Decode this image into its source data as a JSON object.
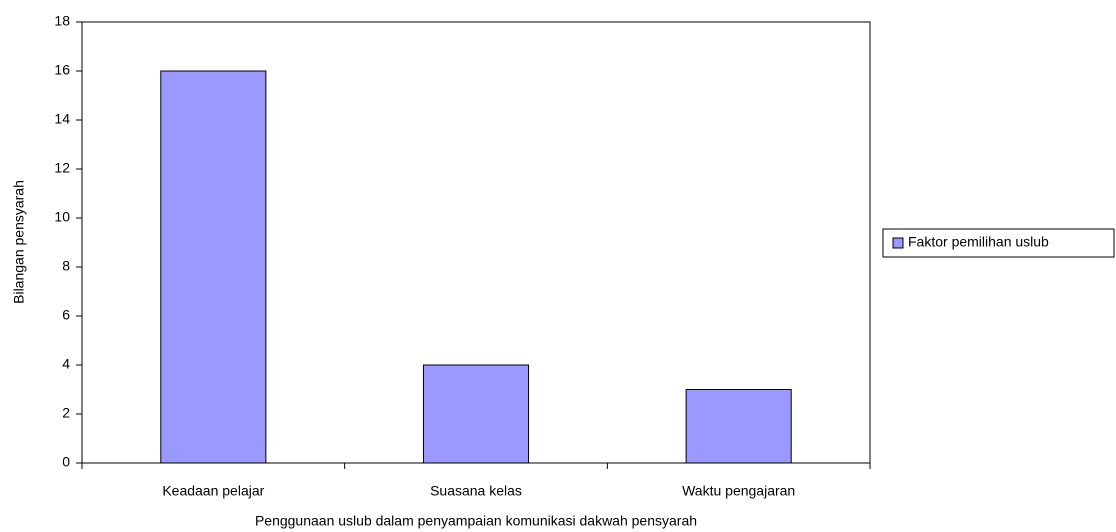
{
  "chart_data": {
    "type": "bar",
    "x_label": "Penggunaan uslub dalam penyampaian komunikasi dakwah pensyarah",
    "y_label": "Bilangan pensyarah",
    "categories": [
      "Keadaan pelajar",
      "Suasana kelas",
      "Waktu pengajaran"
    ],
    "series": [
      {
        "name": "Faktor pemilihan uslub",
        "color": "#9999ff",
        "values": [
          16,
          4,
          3
        ]
      }
    ],
    "ylim": [
      0,
      18
    ],
    "yticks": [
      0,
      2,
      4,
      6,
      8,
      10,
      12,
      14,
      16,
      18
    ],
    "grid": false,
    "legend": "right"
  }
}
